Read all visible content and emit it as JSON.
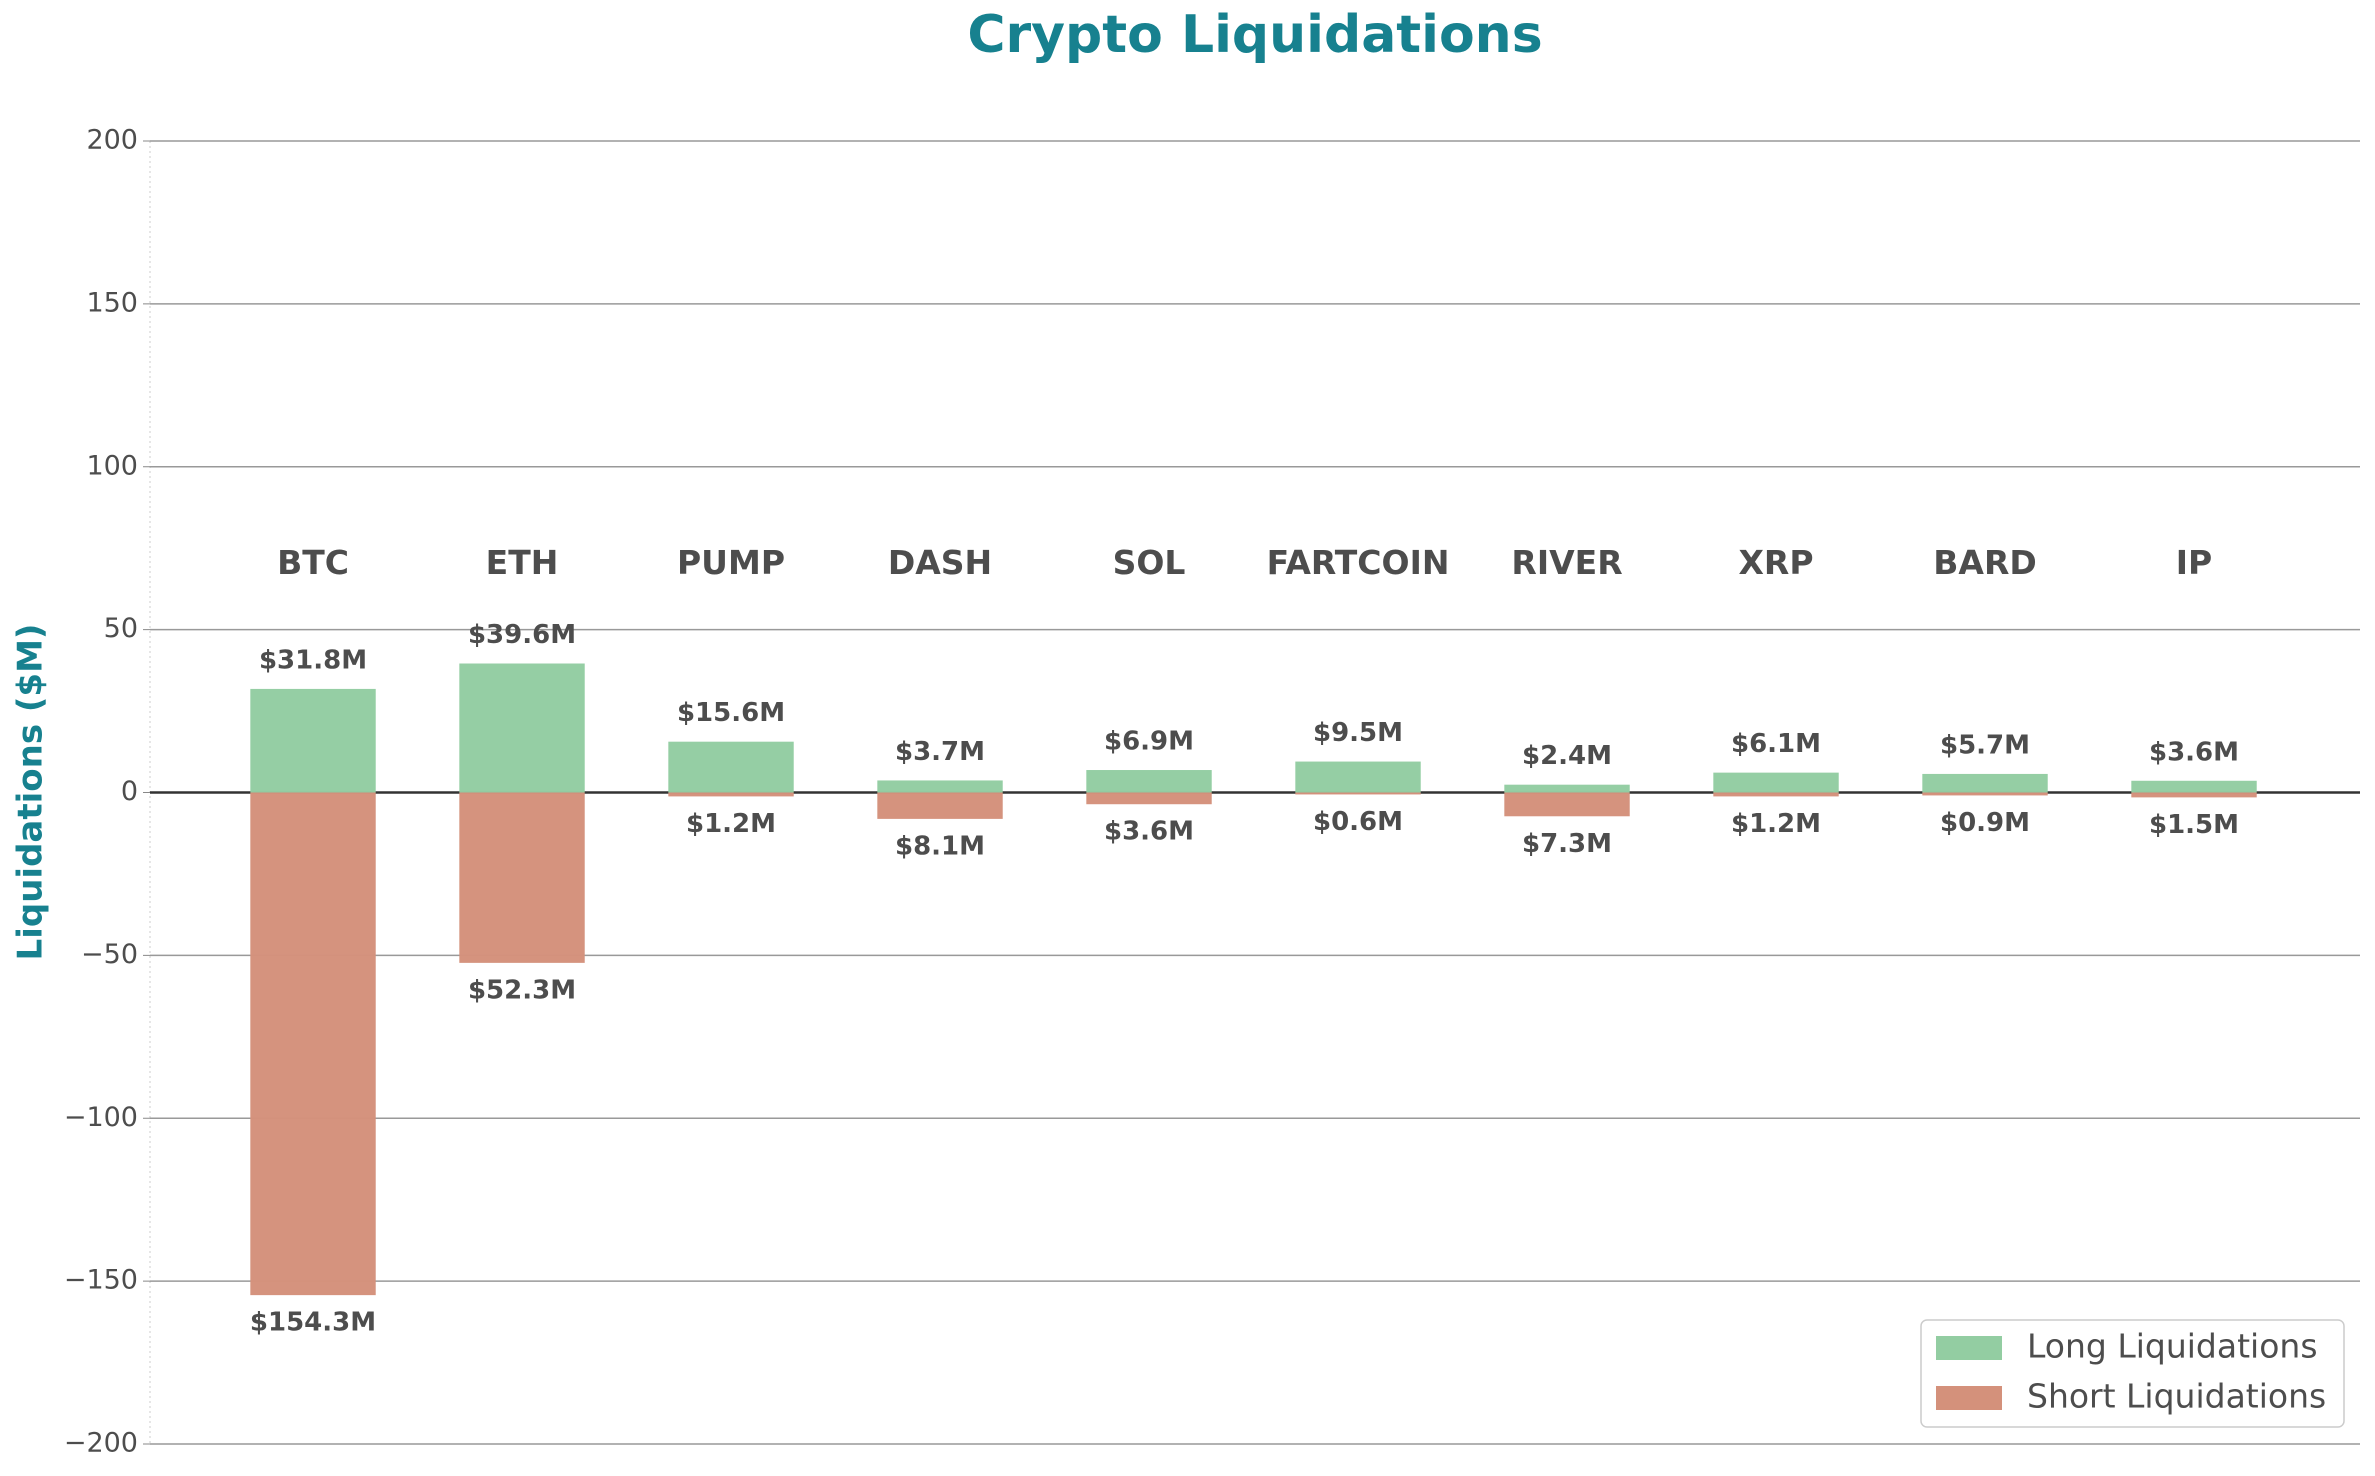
{
  "chart_data": {
    "type": "bar",
    "title": "Crypto Liquidations",
    "y_label": "Liquidations ($M)",
    "categories": [
      "BTC",
      "ETH",
      "PUMP",
      "DASH",
      "SOL",
      "FARTCOIN",
      "RIVER",
      "XRP",
      "BARD",
      "IP"
    ],
    "series": [
      {
        "name": "Long Liquidations",
        "color": "#93cda2",
        "values": [
          31.8,
          39.6,
          15.6,
          3.7,
          6.9,
          9.5,
          2.4,
          6.1,
          5.7,
          3.6
        ],
        "value_labels": [
          "$31.8M",
          "$39.6M",
          "$15.6M",
          "$3.7M",
          "$6.9M",
          "$9.5M",
          "$2.4M",
          "$6.1M",
          "$5.7M",
          "$3.6M"
        ]
      },
      {
        "name": "Short Liquidations",
        "color": "#d4917b",
        "values": [
          -154.3,
          -52.3,
          -1.2,
          -8.1,
          -3.6,
          -0.6,
          -7.3,
          -1.2,
          -0.9,
          -1.5
        ],
        "value_labels": [
          "$154.3M",
          "$52.3M",
          "$1.2M",
          "$8.1M",
          "$3.6M",
          "$0.6M",
          "$7.3M",
          "$1.2M",
          "$0.9M",
          "$1.5M"
        ]
      }
    ],
    "ylim": [
      -200,
      200
    ],
    "yticks": [
      {
        "value": -200,
        "label": "−200"
      },
      {
        "value": -150,
        "label": "−150"
      },
      {
        "value": -100,
        "label": "−100"
      },
      {
        "value": -50,
        "label": "−50"
      },
      0,
      50,
      100,
      150,
      200
    ],
    "grid": true,
    "legend": "lower right"
  }
}
